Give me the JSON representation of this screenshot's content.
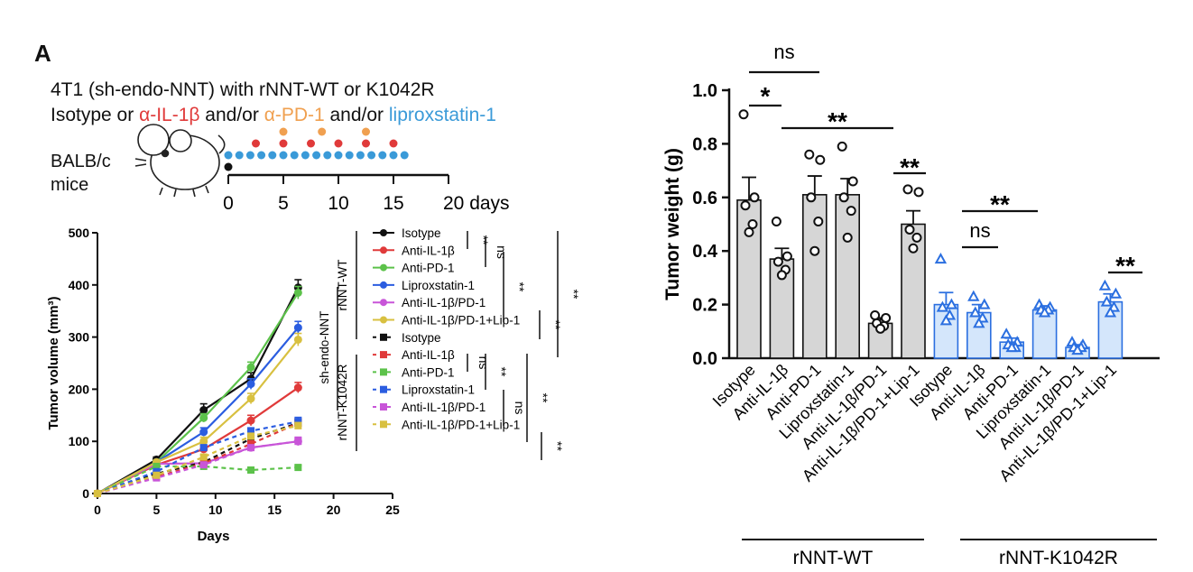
{
  "panel_letter": "A",
  "header": {
    "line1": "4T1 (sh-endo-NNT) with rNNT-WT or K1042R",
    "line2_prefix": "Isotype or ",
    "line2_il": "α-IL-1β",
    "line2_mid1": " and/or ",
    "line2_pd": "α-PD-1",
    "line2_mid2": " and/or ",
    "line2_lip": "liproxstatin-1"
  },
  "mouse": {
    "line1": "BALB/c",
    "line2": "mice"
  },
  "timeline": {
    "ticks": [
      "0",
      "5",
      "10",
      "15",
      "20 days"
    ],
    "tick_days": [
      0,
      5,
      10,
      15,
      20
    ],
    "red_dot_days": [
      2.5,
      5,
      7.5,
      10,
      12.5,
      15
    ],
    "orange_dot_days": [
      5,
      8.5,
      12.5
    ],
    "blue_dot_days": [
      0,
      1,
      2,
      3,
      4,
      5,
      6,
      7,
      8,
      9,
      10,
      11,
      12,
      13,
      14,
      15,
      16
    ],
    "colors": {
      "red": "#e03a3a",
      "orange": "#f0a050",
      "blue": "#3a9ad8"
    }
  },
  "chart_data": [
    {
      "type": "line",
      "xlabel": "Days",
      "ylabel": "Tumor volume (mm³)",
      "xlim": [
        0,
        25
      ],
      "ylim": [
        0,
        500
      ],
      "xticks": [
        "0",
        "5",
        "10",
        "15",
        "20",
        "25"
      ],
      "yticks": [
        "0",
        "100",
        "200",
        "300",
        "400",
        "500"
      ],
      "x": [
        0,
        5,
        9,
        13,
        17
      ],
      "series": [
        {
          "name": "Isotype",
          "color": "#111111",
          "dashed": false,
          "values": [
            0,
            65,
            160,
            220,
            395
          ],
          "err": [
            2,
            5,
            12,
            12,
            15
          ]
        },
        {
          "name": "Anti-IL-1β",
          "color": "#e03a3a",
          "dashed": false,
          "values": [
            0,
            55,
            85,
            140,
            203
          ],
          "err": [
            2,
            4,
            6,
            10,
            10
          ]
        },
        {
          "name": "Anti-PD-1",
          "color": "#5cc24a",
          "dashed": false,
          "values": [
            0,
            60,
            145,
            242,
            385
          ],
          "err": [
            2,
            4,
            8,
            10,
            12
          ]
        },
        {
          "name": "Liproxstatin-1",
          "color": "#2b5de0",
          "dashed": false,
          "values": [
            0,
            60,
            118,
            210,
            318
          ],
          "err": [
            2,
            4,
            8,
            10,
            12
          ]
        },
        {
          "name": "Anti-IL-1β/PD-1",
          "color": "#c855d8",
          "dashed": false,
          "values": [
            0,
            57,
            58,
            88,
            100
          ],
          "err": [
            2,
            4,
            5,
            6,
            8
          ]
        },
        {
          "name": "Anti-IL-1β/PD-1+Lip-1",
          "color": "#d8c040",
          "dashed": false,
          "values": [
            0,
            60,
            100,
            182,
            295
          ],
          "err": [
            2,
            4,
            8,
            10,
            12
          ]
        },
        {
          "name": "Isotype",
          "color": "#111111",
          "dashed": true,
          "values": [
            0,
            38,
            60,
            105,
            135
          ],
          "err": [
            2,
            4,
            5,
            6,
            8
          ]
        },
        {
          "name": "Anti-IL-1β",
          "color": "#e03a3a",
          "dashed": true,
          "values": [
            0,
            32,
            58,
            95,
            135
          ],
          "err": [
            2,
            4,
            5,
            6,
            8
          ]
        },
        {
          "name": "Anti-PD-1",
          "color": "#5cc24a",
          "dashed": true,
          "values": [
            0,
            52,
            52,
            45,
            50
          ],
          "err": [
            2,
            3,
            3,
            3,
            4
          ]
        },
        {
          "name": "Liproxstatin-1",
          "color": "#2b5de0",
          "dashed": true,
          "values": [
            0,
            42,
            88,
            120,
            138
          ],
          "err": [
            2,
            4,
            5,
            6,
            8
          ]
        },
        {
          "name": "Anti-IL-1β/PD-1",
          "color": "#c855d8",
          "dashed": true,
          "values": [
            0,
            30,
            55,
            88,
            100
          ],
          "err": [
            2,
            3,
            4,
            5,
            6
          ]
        },
        {
          "name": "Anti-IL-1β/PD-1+Lip-1",
          "color": "#d8c040",
          "dashed": true,
          "values": [
            0,
            35,
            70,
            110,
            130
          ],
          "err": [
            2,
            3,
            4,
            5,
            6
          ]
        }
      ],
      "group_labels": {
        "outer": "sh-endo-NNT",
        "wt": "rNNT-WT",
        "mut": "rNNT-K1042R"
      },
      "annotations": [
        "**",
        "ns",
        "**",
        "**",
        "**",
        "ns",
        "**",
        "ns",
        "**",
        "**"
      ]
    },
    {
      "type": "bar",
      "ylabel": "Tumor weight (g)",
      "ylim": [
        0,
        1.0
      ],
      "yticks": [
        "0.0",
        "0.2",
        "0.4",
        "0.6",
        "0.8",
        "1.0"
      ],
      "categories": [
        "Isotype",
        "Anti-IL-1β",
        "Anti-PD-1",
        "Liproxstatin-1",
        "Anti-IL-1β/PD-1",
        "Anti-IL-1β/PD-1+Lip-1",
        "Isotype",
        "Anti-IL-1β",
        "Anti-PD-1",
        "Liproxstatin-1",
        "Anti-IL-1β/PD-1",
        "Anti-IL-1β/PD-1+Lip-1"
      ],
      "values": [
        0.59,
        0.37,
        0.61,
        0.61,
        0.13,
        0.5,
        0.2,
        0.17,
        0.06,
        0.18,
        0.04,
        0.21
      ],
      "err": [
        0.085,
        0.04,
        0.07,
        0.06,
        0.02,
        0.05,
        0.045,
        0.03,
        0.015,
        0.015,
        0.01,
        0.03
      ],
      "points": [
        [
          0.91,
          0.6,
          0.57,
          0.5,
          0.47
        ],
        [
          0.51,
          0.38,
          0.36,
          0.33,
          0.31
        ],
        [
          0.76,
          0.74,
          0.6,
          0.51,
          0.4
        ],
        [
          0.79,
          0.66,
          0.6,
          0.55,
          0.45
        ],
        [
          0.16,
          0.15,
          0.13,
          0.12,
          0.11
        ],
        [
          0.63,
          0.62,
          0.48,
          0.45,
          0.41
        ],
        [
          0.37,
          0.2,
          0.19,
          0.16,
          0.14
        ],
        [
          0.23,
          0.2,
          0.17,
          0.15,
          0.13
        ],
        [
          0.09,
          0.06,
          0.05,
          0.04,
          0.04
        ],
        [
          0.2,
          0.19,
          0.18,
          0.18,
          0.17
        ],
        [
          0.06,
          0.05,
          0.04,
          0.04,
          0.03
        ],
        [
          0.27,
          0.24,
          0.21,
          0.19,
          0.17
        ]
      ],
      "groups": [
        {
          "name": "rNNT-WT",
          "fill": "#d6d6d6",
          "stroke": "#111111"
        },
        {
          "name": "rNNT-K1042R",
          "fill": "#d4e6fb",
          "stroke": "#2b6fe0"
        }
      ],
      "annotations": [
        "ns",
        "*",
        "**",
        "**",
        "**",
        "ns",
        "**"
      ]
    }
  ]
}
